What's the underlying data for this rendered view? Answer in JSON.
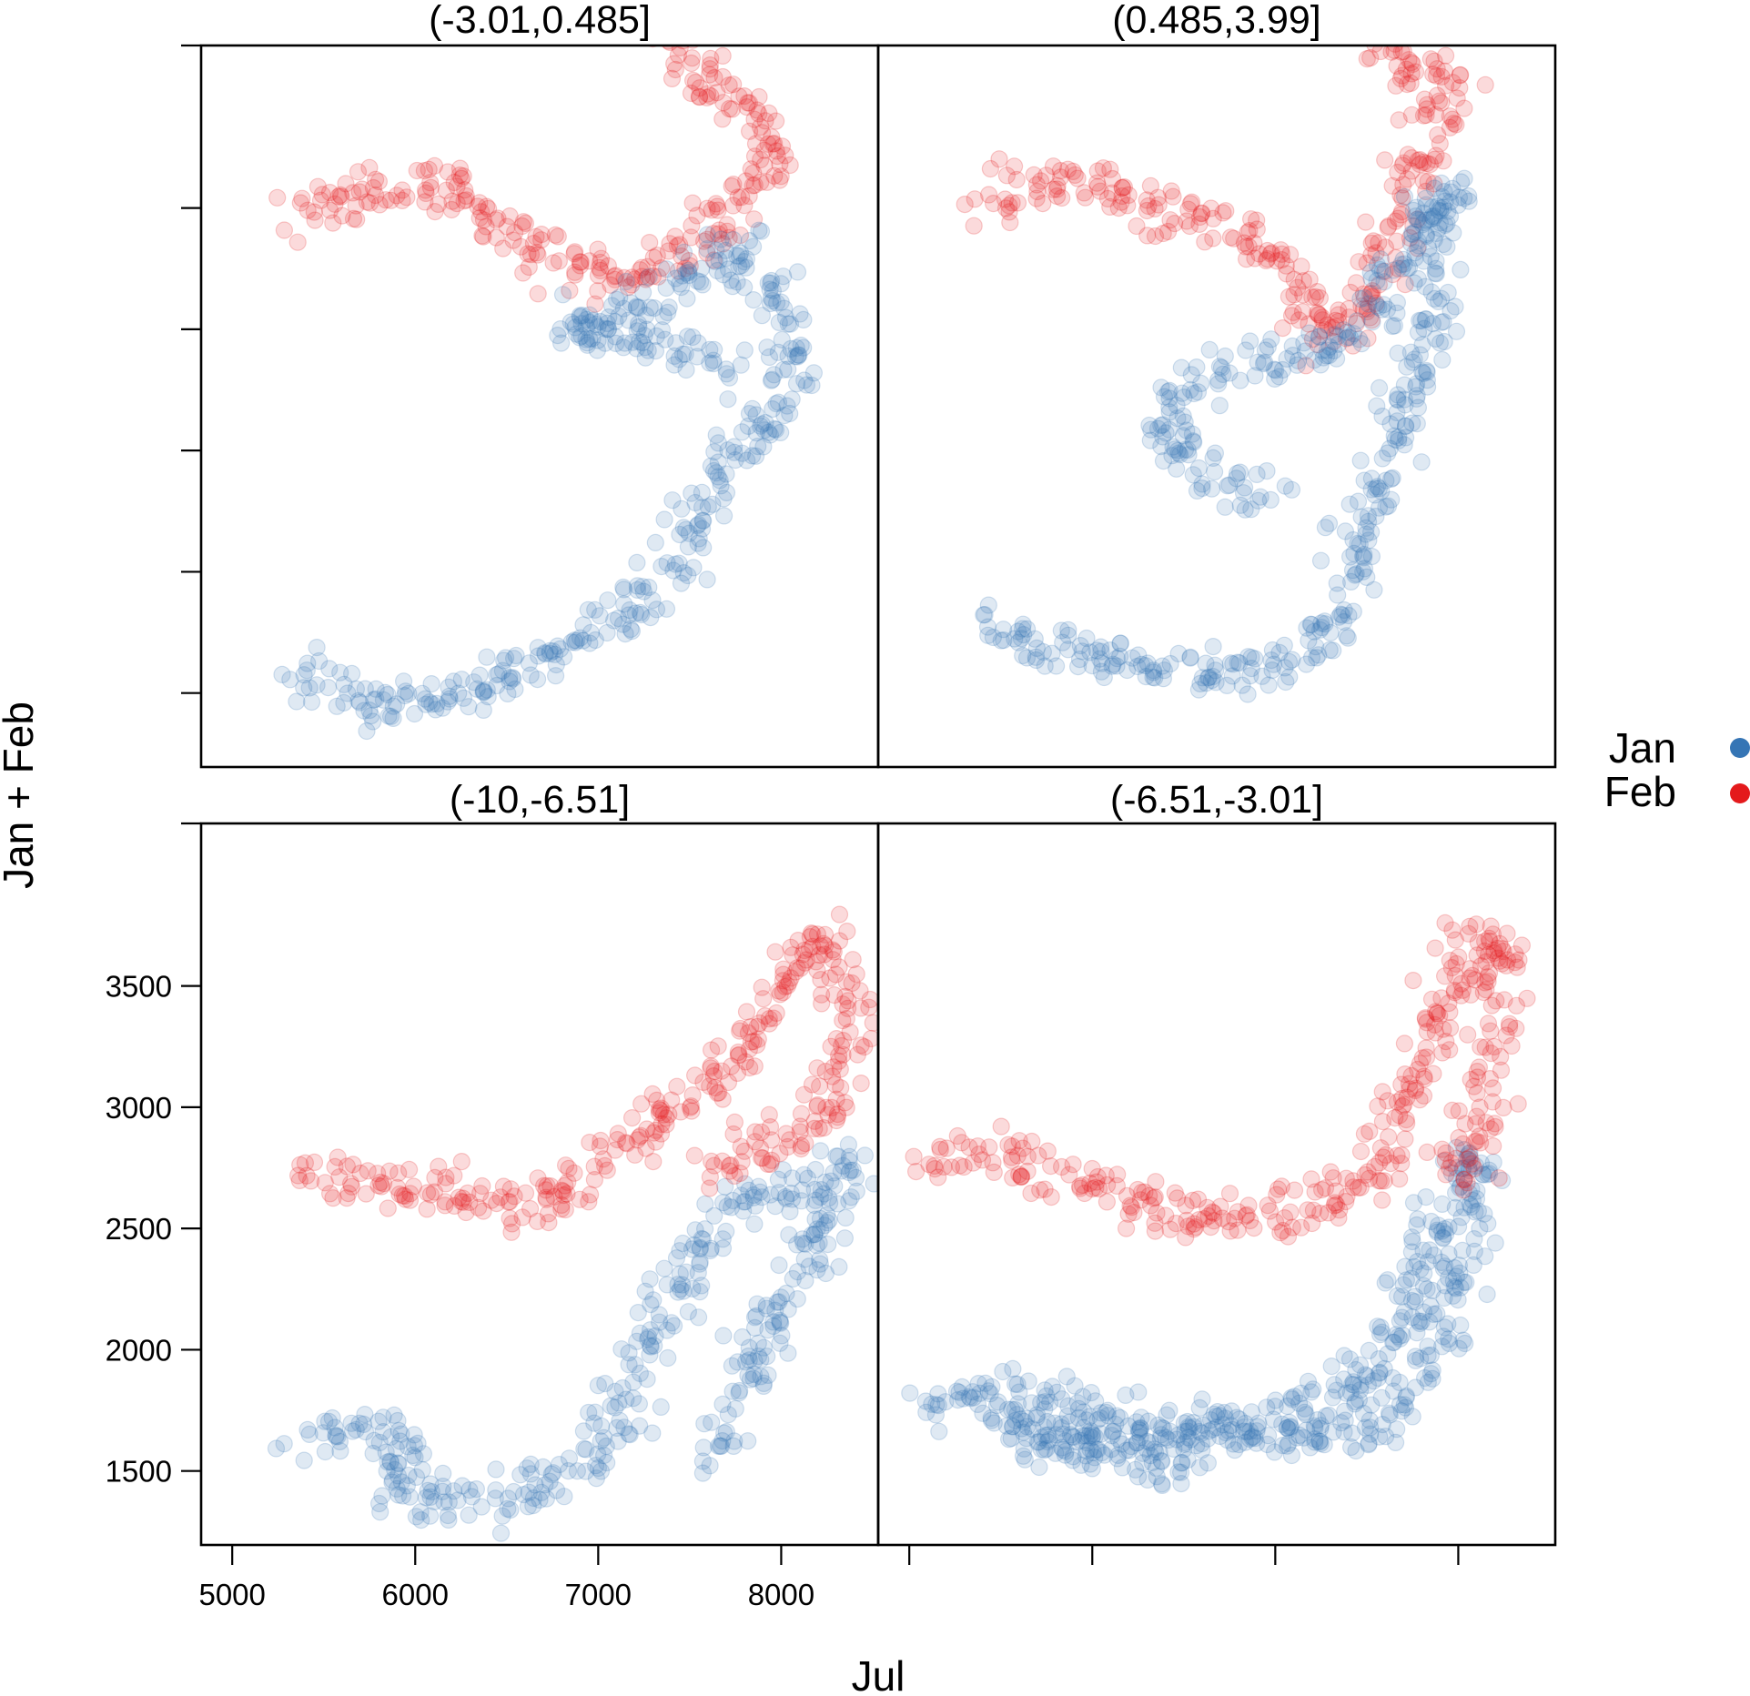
{
  "chart_data": {
    "type": "scatter",
    "layout": "trellis 2x2",
    "xlabel": "Jul",
    "ylabel": "Jan + Feb",
    "x_ticks": [
      5000,
      6000,
      7000,
      8000
    ],
    "y_ticks": [
      1500,
      2000,
      2500,
      3000,
      3500
    ],
    "xlim": [
      4830,
      8530
    ],
    "ylim": [
      1195,
      4170
    ],
    "legend": {
      "position": "right",
      "entries": [
        {
          "name": "Jan",
          "color": "#3575b5"
        },
        {
          "name": "Feb",
          "color": "#e41a1c"
        }
      ]
    },
    "colors": {
      "Jan": "#3575b5",
      "Feb": "#e41a1c"
    },
    "panels": [
      {
        "title": "(-3.01,0.485]",
        "series": [
          {
            "name": "Jan",
            "path": [
              [
                5330,
                1590
              ],
              [
                5600,
                1520
              ],
              [
                5900,
                1450
              ],
              [
                6200,
                1470
              ],
              [
                6500,
                1580
              ],
              [
                6800,
                1680
              ],
              [
                7000,
                1780
              ],
              [
                7200,
                1850
              ],
              [
                7400,
                2050
              ],
              [
                7500,
                2250
              ],
              [
                7600,
                2350
              ],
              [
                7800,
                2580
              ],
              [
                8000,
                2650
              ],
              [
                8100,
                2850
              ],
              [
                8050,
                3050
              ],
              [
                7900,
                3200
              ],
              [
                7750,
                3350
              ],
              [
                7600,
                3250
              ],
              [
                7400,
                3150
              ],
              [
                7100,
                3050
              ],
              [
                6800,
                3010
              ],
              [
                7300,
                2950
              ],
              [
                7700,
                2880
              ]
            ]
          },
          {
            "name": "Feb",
            "path": [
              [
                5320,
                3450
              ],
              [
                5600,
                3550
              ],
              [
                6000,
                3620
              ],
              [
                6200,
                3560
              ],
              [
                6400,
                3450
              ],
              [
                6700,
                3330
              ],
              [
                6900,
                3250
              ],
              [
                7100,
                3180
              ],
              [
                7400,
                3300
              ],
              [
                7600,
                3420
              ],
              [
                7800,
                3550
              ],
              [
                8000,
                3700
              ],
              [
                7900,
                3850
              ],
              [
                7700,
                3950
              ],
              [
                7500,
                4050
              ],
              [
                7300,
                4300
              ],
              [
                7300,
                4450
              ],
              [
                7600,
                4560
              ],
              [
                7800,
                4550
              ]
            ]
          }
        ]
      },
      {
        "title": "(0.485,3.99]",
        "series": [
          {
            "name": "Jan",
            "path": [
              [
                5400,
                1770
              ],
              [
                5700,
                1710
              ],
              [
                6000,
                1660
              ],
              [
                6300,
                1610
              ],
              [
                6600,
                1570
              ],
              [
                6900,
                1590
              ],
              [
                7100,
                1640
              ],
              [
                7300,
                1750
              ],
              [
                7400,
                1900
              ],
              [
                7450,
                2100
              ],
              [
                7500,
                2300
              ],
              [
                7600,
                2500
              ],
              [
                7700,
                2650
              ],
              [
                7800,
                2850
              ],
              [
                7900,
                3050
              ],
              [
                7850,
                3200
              ],
              [
                7800,
                3400
              ],
              [
                7900,
                3550
              ],
              [
                8000,
                3560
              ],
              [
                7700,
                3300
              ],
              [
                7400,
                2950
              ],
              [
                7000,
                2870
              ],
              [
                6700,
                2820
              ],
              [
                6500,
                2760
              ],
              [
                6400,
                2540
              ],
              [
                6700,
                2380
              ],
              [
                7000,
                2310
              ]
            ]
          },
          {
            "name": "Feb",
            "path": [
              [
                5400,
                3540
              ],
              [
                5700,
                3620
              ],
              [
                6000,
                3580
              ],
              [
                6300,
                3520
              ],
              [
                6600,
                3440
              ],
              [
                6900,
                3360
              ],
              [
                7100,
                3220
              ],
              [
                7200,
                3120
              ],
              [
                7300,
                2960
              ],
              [
                7500,
                3050
              ],
              [
                7600,
                3250
              ],
              [
                7700,
                3500
              ],
              [
                7800,
                3750
              ],
              [
                7900,
                3900
              ],
              [
                8000,
                4000
              ],
              [
                7800,
                4050
              ],
              [
                7600,
                4170
              ],
              [
                7500,
                4300
              ],
              [
                7700,
                4450
              ],
              [
                7900,
                4500
              ],
              [
                8000,
                4450
              ]
            ]
          }
        ]
      },
      {
        "title": "(-10,-6.51]",
        "series": [
          {
            "name": "Jan",
            "path": [
              [
                5400,
                1620
              ],
              [
                5700,
                1680
              ],
              [
                5900,
                1640
              ],
              [
                6000,
                1550
              ],
              [
                5850,
                1450
              ],
              [
                6100,
                1400
              ],
              [
                6400,
                1380
              ],
              [
                6700,
                1420
              ],
              [
                6900,
                1500
              ],
              [
                7000,
                1600
              ],
              [
                7100,
                1750
              ],
              [
                7200,
                1900
              ],
              [
                7300,
                2050
              ],
              [
                7400,
                2200
              ],
              [
                7500,
                2350
              ],
              [
                7600,
                2500
              ],
              [
                7800,
                2620
              ],
              [
                8000,
                2650
              ],
              [
                8200,
                2700
              ],
              [
                8400,
                2750
              ],
              [
                8300,
                2600
              ],
              [
                8100,
                2300
              ],
              [
                7900,
                2050
              ],
              [
                7750,
                1720
              ],
              [
                7600,
                1550
              ]
            ]
          },
          {
            "name": "Feb",
            "path": [
              [
                5400,
                2710
              ],
              [
                5700,
                2680
              ],
              [
                6000,
                2660
              ],
              [
                6300,
                2620
              ],
              [
                6600,
                2580
              ],
              [
                6800,
                2640
              ],
              [
                7000,
                2780
              ],
              [
                7200,
                2900
              ],
              [
                7400,
                3000
              ],
              [
                7600,
                3100
              ],
              [
                7800,
                3250
              ],
              [
                7950,
                3450
              ],
              [
                8100,
                3600
              ],
              [
                8250,
                3700
              ],
              [
                8350,
                3500
              ],
              [
                8400,
                3300
              ],
              [
                8300,
                3100
              ],
              [
                8200,
                2950
              ],
              [
                8000,
                2850
              ],
              [
                7800,
                2800
              ],
              [
                7600,
                2720
              ]
            ]
          }
        ]
      },
      {
        "title": "(-6.51,-3.01]",
        "series": [
          {
            "name": "Jan",
            "path": [
              [
                5100,
                1770
              ],
              [
                5400,
                1850
              ],
              [
                5700,
                1800
              ],
              [
                6000,
                1750
              ],
              [
                6300,
                1700
              ],
              [
                6600,
                1680
              ],
              [
                6900,
                1700
              ],
              [
                7200,
                1720
              ],
              [
                7400,
                1850
              ],
              [
                7600,
                1950
              ],
              [
                7700,
                2150
              ],
              [
                7800,
                2350
              ],
              [
                7900,
                2550
              ],
              [
                8000,
                2700
              ],
              [
                8100,
                2800
              ],
              [
                8050,
                2450
              ],
              [
                7950,
                2150
              ],
              [
                7800,
                1900
              ],
              [
                7600,
                1700
              ],
              [
                7300,
                1640
              ],
              [
                7000,
                1630
              ],
              [
                6600,
                1620
              ],
              [
                6200,
                1600
              ],
              [
                5800,
                1650
              ],
              [
                5500,
                1700
              ],
              [
                6500,
                1460
              ]
            ]
          },
          {
            "name": "Feb",
            "path": [
              [
                5100,
                2780
              ],
              [
                5400,
                2800
              ],
              [
                5700,
                2750
              ],
              [
                6000,
                2680
              ],
              [
                6300,
                2600
              ],
              [
                6600,
                2540
              ],
              [
                6900,
                2550
              ],
              [
                7200,
                2570
              ],
              [
                7400,
                2620
              ],
              [
                7550,
                2750
              ],
              [
                7650,
                2950
              ],
              [
                7750,
                3150
              ],
              [
                7850,
                3350
              ],
              [
                7950,
                3500
              ],
              [
                8050,
                3650
              ],
              [
                8150,
                3750
              ],
              [
                8250,
                3650
              ],
              [
                8200,
                3300
              ],
              [
                8100,
                2950
              ],
              [
                8000,
                2650
              ]
            ]
          }
        ]
      }
    ]
  }
}
